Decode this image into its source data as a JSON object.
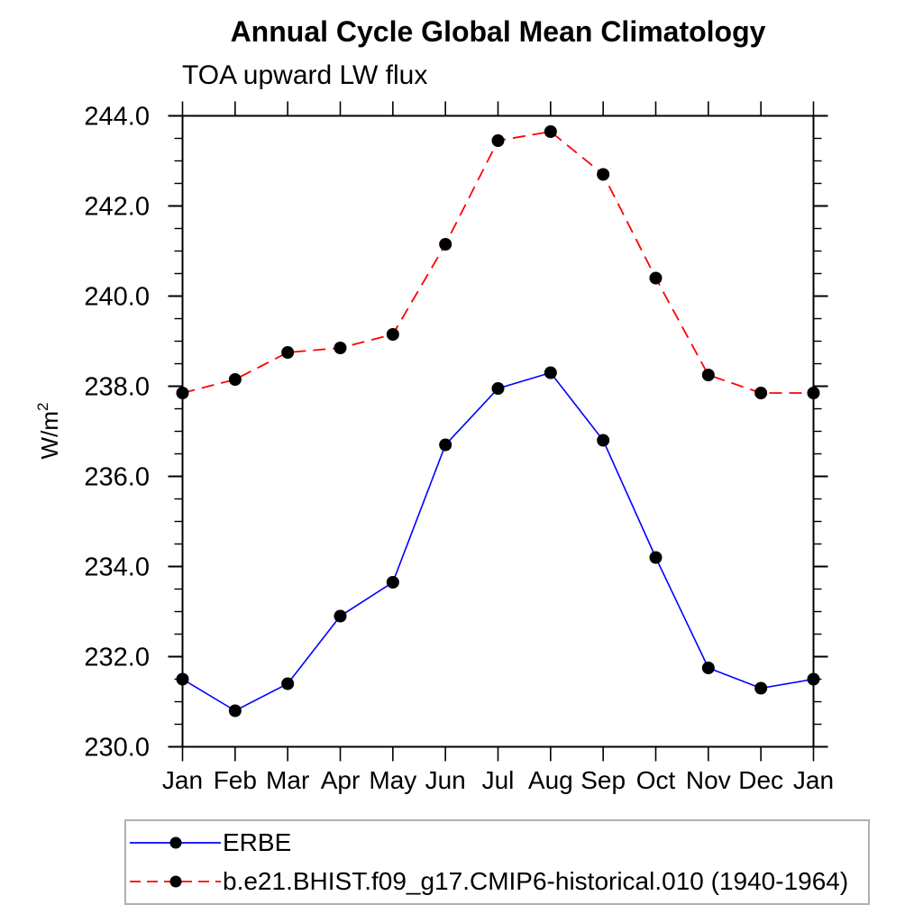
{
  "chart_data": {
    "type": "line",
    "title": "Annual Cycle Global Mean Climatology",
    "subtitle": "TOA upward LW flux",
    "ylabel": "W/m²",
    "xlabel": "",
    "x_categories": [
      "Jan",
      "Feb",
      "Mar",
      "Apr",
      "May",
      "Jun",
      "Jul",
      "Aug",
      "Sep",
      "Oct",
      "Nov",
      "Dec",
      "Jan"
    ],
    "ylim": [
      230.0,
      244.0
    ],
    "ytick_major_interval": 2.0,
    "ytick_minor_interval": 0.5,
    "ytick_label_format": "one-decimal",
    "grid": false,
    "legend_position": "bottom-left",
    "axis_color": "#000000",
    "marker_shape": "filled-circle",
    "marker_color": "#000000",
    "series": [
      {
        "name": "ERBE",
        "color": "#0000ff",
        "line_style": "solid",
        "values": [
          231.5,
          230.8,
          231.4,
          232.9,
          233.65,
          236.7,
          237.95,
          238.3,
          236.8,
          234.2,
          231.75,
          231.3,
          231.5
        ]
      },
      {
        "name": "b.e21.BHIST.f09_g17.CMIP6-historical.010 (1940-1964)",
        "color": "#ff0000",
        "line_style": "dashed",
        "values": [
          237.85,
          238.15,
          238.75,
          238.85,
          239.15,
          241.15,
          243.45,
          243.65,
          242.7,
          240.4,
          238.25,
          237.85,
          237.85
        ]
      }
    ]
  }
}
